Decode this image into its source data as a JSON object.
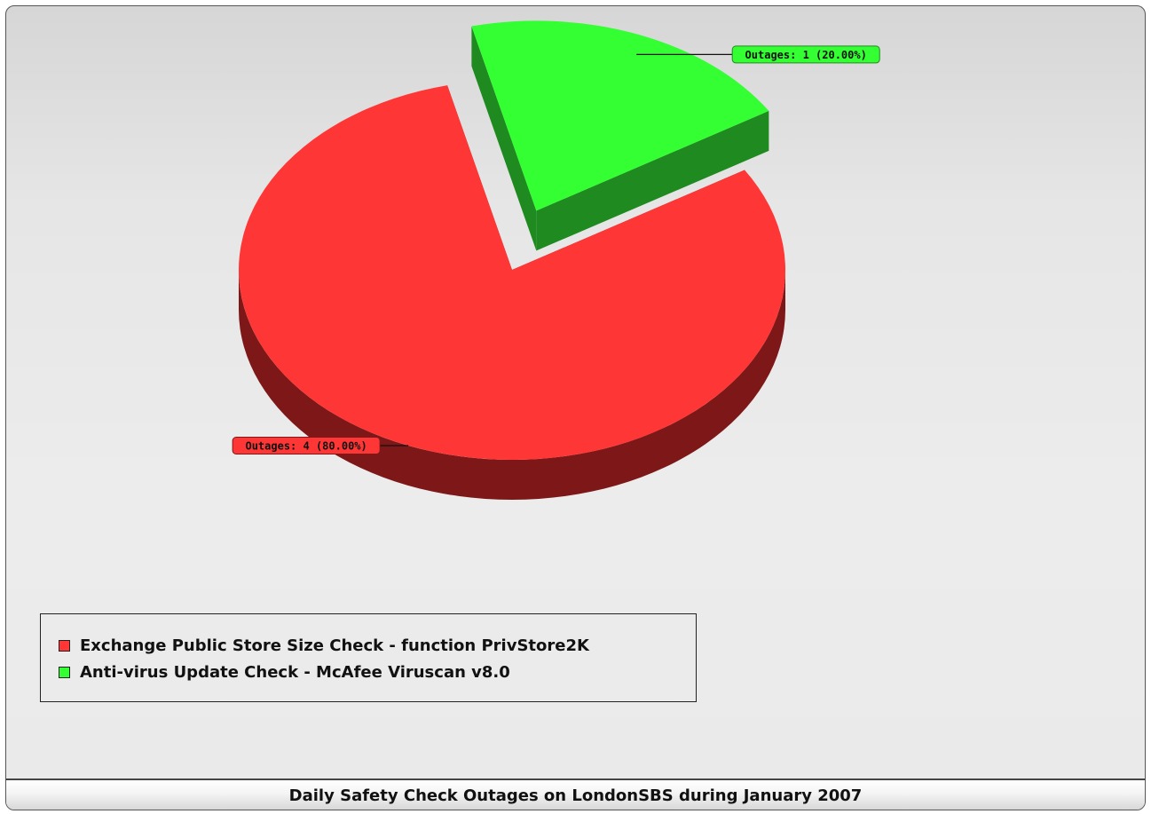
{
  "chart_data": {
    "type": "pie",
    "style": "3d-exploded",
    "title": "Daily Safety Check Outages on LondonSBS during January 2007",
    "slices": [
      {
        "name": "Exchange Public Store Size Check - function PrivStore2K",
        "value": 4,
        "percent": 80.0,
        "label": "Outages: 4 (80.00%)",
        "color": "#ff3636",
        "side_color": "#7e1818"
      },
      {
        "name": "Anti-virus Update Check - McAfee Viruscan v8.0",
        "value": 1,
        "percent": 20.0,
        "label": "Outages: 1 (20.00%)",
        "color": "#33ff33",
        "side_color": "#1f8a1f"
      }
    ],
    "legend_position": "bottom-left"
  }
}
